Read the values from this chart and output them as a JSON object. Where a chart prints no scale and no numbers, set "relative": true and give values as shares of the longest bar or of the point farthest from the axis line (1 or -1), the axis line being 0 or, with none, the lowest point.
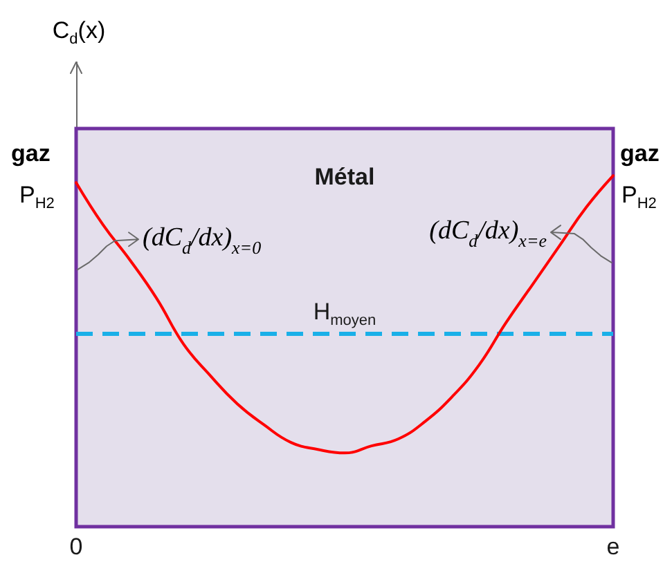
{
  "chart_data": {
    "type": "line",
    "relative": true,
    "categories": [
      "0",
      null,
      null,
      null,
      null,
      null,
      null,
      null,
      null,
      null,
      null,
      null,
      null,
      null,
      null,
      null,
      null,
      null,
      null,
      null,
      "e"
    ],
    "values": [
      0.98,
      0.86,
      0.76,
      0.65,
      0.52,
      0.43,
      0.35,
      0.29,
      0.24,
      0.22,
      0.21,
      0.23,
      0.25,
      0.3,
      0.37,
      0.46,
      0.58,
      0.69,
      0.8,
      0.91,
      1
    ],
    "color": "#ff0000",
    "marker": "none",
    "line_style": "solid",
    "ref_lines": [
      {
        "axis": "y",
        "value": 0.55,
        "label": "H$_{moyen}$",
        "color": "#1ab0e8",
        "line_style": "dashed"
      }
    ],
    "bands": [
      {
        "axis": "x",
        "from": "0",
        "to": "e",
        "label": "Métal",
        "color": "#e4dfec"
      }
    ],
    "annotations": [
      "C$_{d}$(x)",
      "gaz",
      "P$_{H2}$",
      "gaz",
      "P$_{H2}$",
      {
        "text": "(dC$_{d}$/dx)$_{x=0}$",
        "x": "0",
        "y": 0.98
      },
      {
        "text": "(dC$_{d}$/dx)$_{x=e}$",
        "x": "e",
        "y": 1
      }
    ]
  }
}
